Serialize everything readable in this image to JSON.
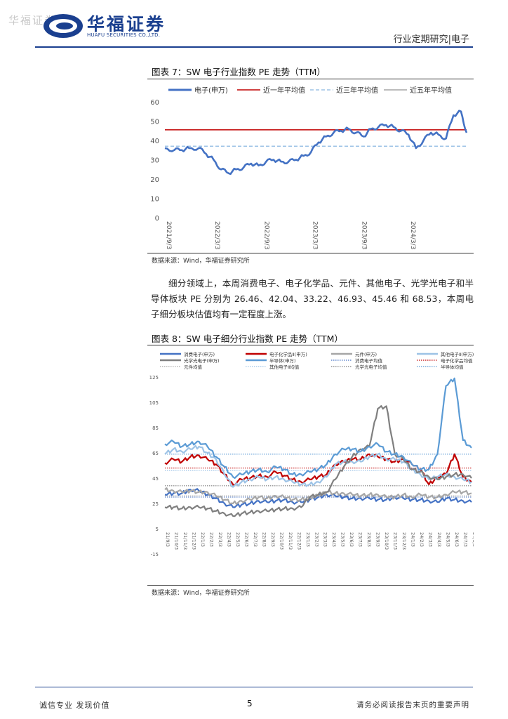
{
  "header": {
    "watermark": "华福证券",
    "company_cn": "华福证券",
    "company_en": "HUAFU SECURITIES CO.,LTD.",
    "section": "行业定期研究|电子"
  },
  "figure7": {
    "title": "图表 7：SW 电子行业指数 PE 走势（TTM）",
    "source": "数据来源：Wind，华福证券研究所",
    "chart_data": {
      "type": "line",
      "ylim": [
        0,
        60
      ],
      "yticks": [
        "60",
        "50",
        "40",
        "30",
        "20",
        "10",
        "0"
      ],
      "xticks": [
        "2021/9/3",
        "2022/3/3",
        "2022/9/3",
        "2023/3/3",
        "2023/9/3",
        "2024/3/3"
      ],
      "x_range": [
        "2021/9/3",
        "2024/10/4"
      ],
      "legend_position": "top",
      "colors": {
        "main": "#4472c4",
        "one_year": "#c00000",
        "three_year": "#9dc3e6",
        "five_year": "#a6a6a6"
      },
      "series": [
        {
          "name": "电子(申万)",
          "x": [
            "2021/9/3",
            "2021/10/8",
            "2021/11/5",
            "2021/12/3",
            "2022/1/7",
            "2022/2/4",
            "2022/3/4",
            "2022/4/1",
            "2022/4/29",
            "2022/5/27",
            "2022/6/24",
            "2022/7/22",
            "2022/8/19",
            "2022/9/16",
            "2022/10/14",
            "2022/11/11",
            "2022/12/9",
            "2023/1/6",
            "2023/2/3",
            "2023/3/3",
            "2023/3/31",
            "2023/4/28",
            "2023/5/26",
            "2023/6/23",
            "2023/7/21",
            "2023/8/18",
            "2023/9/15",
            "2023/10/13",
            "2023/11/10",
            "2023/12/8",
            "2024/1/5",
            "2024/2/2",
            "2024/3/1",
            "2024/3/29",
            "2024/4/26",
            "2024/5/24",
            "2024/6/21",
            "2024/7/19",
            "2024/8/16",
            "2024/9/13",
            "2024/10/4"
          ],
          "values": [
            36,
            35,
            35,
            36,
            36,
            33,
            30,
            25,
            23,
            25,
            26,
            28,
            27,
            29,
            30,
            29,
            29,
            30,
            32,
            34,
            39,
            42,
            44,
            45,
            46,
            44,
            42,
            46,
            47,
            48,
            47,
            45,
            43,
            36,
            40,
            44,
            43,
            41,
            53,
            55,
            44
          ]
        },
        {
          "name": "近一年平均值",
          "values": [
            45.5
          ]
        },
        {
          "name": "近三年平均值",
          "values": [
            37
          ]
        },
        {
          "name": "近五年平均值",
          "values": []
        }
      ]
    }
  },
  "paragraph": "细分领域上，本周消费电子、电子化学品、元件、其他电子、光学光电子和半导体板块 PE 分别为 26.46、42.04、33.22、46.93、45.46 和 68.53，本周电子细分板块估值均有一定程度上涨。",
  "figure8": {
    "title": "图表 8：SW 电子细分行业指数 PE 走势（TTM）",
    "source": "数据来源：Wind，华福证券研究所",
    "chart_data": {
      "type": "line",
      "ylim": [
        -15,
        125
      ],
      "yticks": [
        "125",
        "105",
        "85",
        "65",
        "45",
        "25",
        "5",
        "-15"
      ],
      "xticks": [
        "21/9/3",
        "21/10/3",
        "21/11/3",
        "21/12/3",
        "22/1/3",
        "22/2/3",
        "22/3/3",
        "22/4/3",
        "22/5/3",
        "22/6/3",
        "22/7/3",
        "22/8/3",
        "22/9/3",
        "22/10/3",
        "22/11/3",
        "22/12/3",
        "23/1/3",
        "23/2/3",
        "23/3/3",
        "23/4/3",
        "23/5/3",
        "23/6/3",
        "23/7/3",
        "23/8/3",
        "23/9/3",
        "23/10/3",
        "23/11/3",
        "23/12/3",
        "24/1/3",
        "24/2/3",
        "24/3/3",
        "24/4/3",
        "24/5/3",
        "24/6/3",
        "24/7/3",
        "24/8/3"
      ],
      "legend_position": "top",
      "series": [
        {
          "name": "消费电子(申万)",
          "color": "#4472c4",
          "style": "solid",
          "values": [
            32,
            33,
            33,
            36,
            35,
            32,
            29,
            25,
            22,
            24,
            25,
            27,
            26,
            27,
            28,
            26,
            26,
            28,
            30,
            32,
            31,
            30,
            29,
            29,
            29,
            28,
            28,
            30,
            29,
            28,
            28,
            27,
            26,
            29,
            28,
            27,
            26
          ]
        },
        {
          "name": "电子化学品Ⅱ(申万)",
          "color": "#c00000",
          "style": "solid",
          "values": [
            57,
            60,
            58,
            62,
            63,
            60,
            56,
            48,
            40,
            44,
            45,
            47,
            46,
            50,
            47,
            44,
            42,
            44,
            46,
            48,
            56,
            58,
            60,
            60,
            64,
            62,
            60,
            58,
            60,
            56,
            52,
            40,
            46,
            48,
            64,
            46,
            42
          ]
        },
        {
          "name": "元件(申万)",
          "color": "#a6a6a6",
          "style": "solid",
          "values": [
            36,
            35,
            34,
            35,
            34,
            34,
            31,
            28,
            25,
            27,
            28,
            30,
            29,
            31,
            30,
            28,
            28,
            30,
            31,
            34,
            33,
            33,
            32,
            31,
            32,
            32,
            30,
            30,
            32,
            30,
            32,
            30,
            30,
            32,
            34,
            34,
            33
          ]
        },
        {
          "name": "其他电子Ⅱ(申万)",
          "color": "#9dc3e6",
          "style": "solid",
          "values": [
            64,
            68,
            66,
            68,
            70,
            65,
            60,
            48,
            38,
            42,
            44,
            46,
            44,
            46,
            44,
            42,
            40,
            40,
            42,
            46,
            56,
            58,
            58,
            58,
            62,
            64,
            60,
            60,
            58,
            52,
            48,
            44,
            46,
            48,
            46,
            44,
            42
          ]
        },
        {
          "name": "光学光电子(申万)",
          "color": "#7f7f7f",
          "style": "solid",
          "values": [
            22,
            22,
            21,
            22,
            22,
            21,
            19,
            17,
            15,
            17,
            18,
            19,
            19,
            20,
            21,
            21,
            22,
            30,
            32,
            34,
            44,
            54,
            62,
            68,
            70,
            100,
            102,
            64,
            60,
            52,
            50,
            46,
            44,
            46,
            48,
            48,
            45
          ]
        },
        {
          "name": "半导体(申万)",
          "color": "#5b9bd5",
          "style": "solid",
          "values": [
            72,
            74,
            70,
            72,
            74,
            70,
            62,
            54,
            46,
            48,
            50,
            52,
            50,
            54,
            52,
            48,
            48,
            50,
            52,
            56,
            64,
            68,
            68,
            66,
            70,
            72,
            66,
            64,
            62,
            56,
            52,
            52,
            64,
            118,
            124,
            75,
            69
          ]
        },
        {
          "name": "消费电子均值",
          "color": "#4472c4",
          "style": "dotted",
          "values": [
            30
          ]
        },
        {
          "name": "电子化学品均值",
          "color": "#c00000",
          "style": "dotted",
          "values": [
            53
          ]
        },
        {
          "name": "元件均值",
          "color": "#a6a6a6",
          "style": "dotted",
          "values": [
            31
          ]
        },
        {
          "name": "其他电子Ⅱ均值",
          "color": "#9dc3e6",
          "style": "dotted",
          "values": [
            51
          ]
        },
        {
          "name": "光学光电子均值",
          "color": "#7f7f7f",
          "style": "dotted",
          "values": [
            39
          ]
        },
        {
          "name": "半导体均值",
          "color": "#5b9bd5",
          "style": "dotted",
          "values": [
            64
          ]
        }
      ]
    }
  },
  "footer": {
    "left": "诚信专业  发现价值",
    "page": "5",
    "right": "请务必阅读报告末页的重要声明"
  }
}
